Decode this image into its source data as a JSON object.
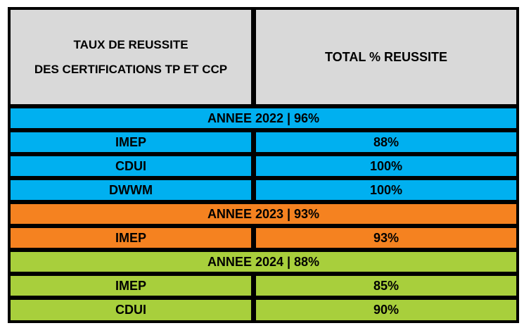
{
  "header": {
    "left_line1": "TAUX DE REUSSITE",
    "left_line2": "DES CERTIFICATIONS TP ET CCP",
    "right": "TOTAL % REUSSITE"
  },
  "colors": {
    "header_bg": "#d9d9d9",
    "year_2022": "#00b0f0",
    "year_2023": "#f58220",
    "year_2024": "#a8cf3c",
    "border": "#000000"
  },
  "years": [
    {
      "label": "ANNEE 2022 | 96%",
      "rows": [
        {
          "name": "IMEP",
          "value": "88%"
        },
        {
          "name": "CDUI",
          "value": "100%"
        },
        {
          "name": "DWWM",
          "value": "100%"
        }
      ]
    },
    {
      "label": "ANNEE 2023 | 93%",
      "rows": [
        {
          "name": "IMEP",
          "value": "93%"
        }
      ]
    },
    {
      "label": "ANNEE 2024 | 88%",
      "rows": [
        {
          "name": "IMEP",
          "value": "85%"
        },
        {
          "name": "CDUI",
          "value": "90%"
        }
      ]
    }
  ]
}
